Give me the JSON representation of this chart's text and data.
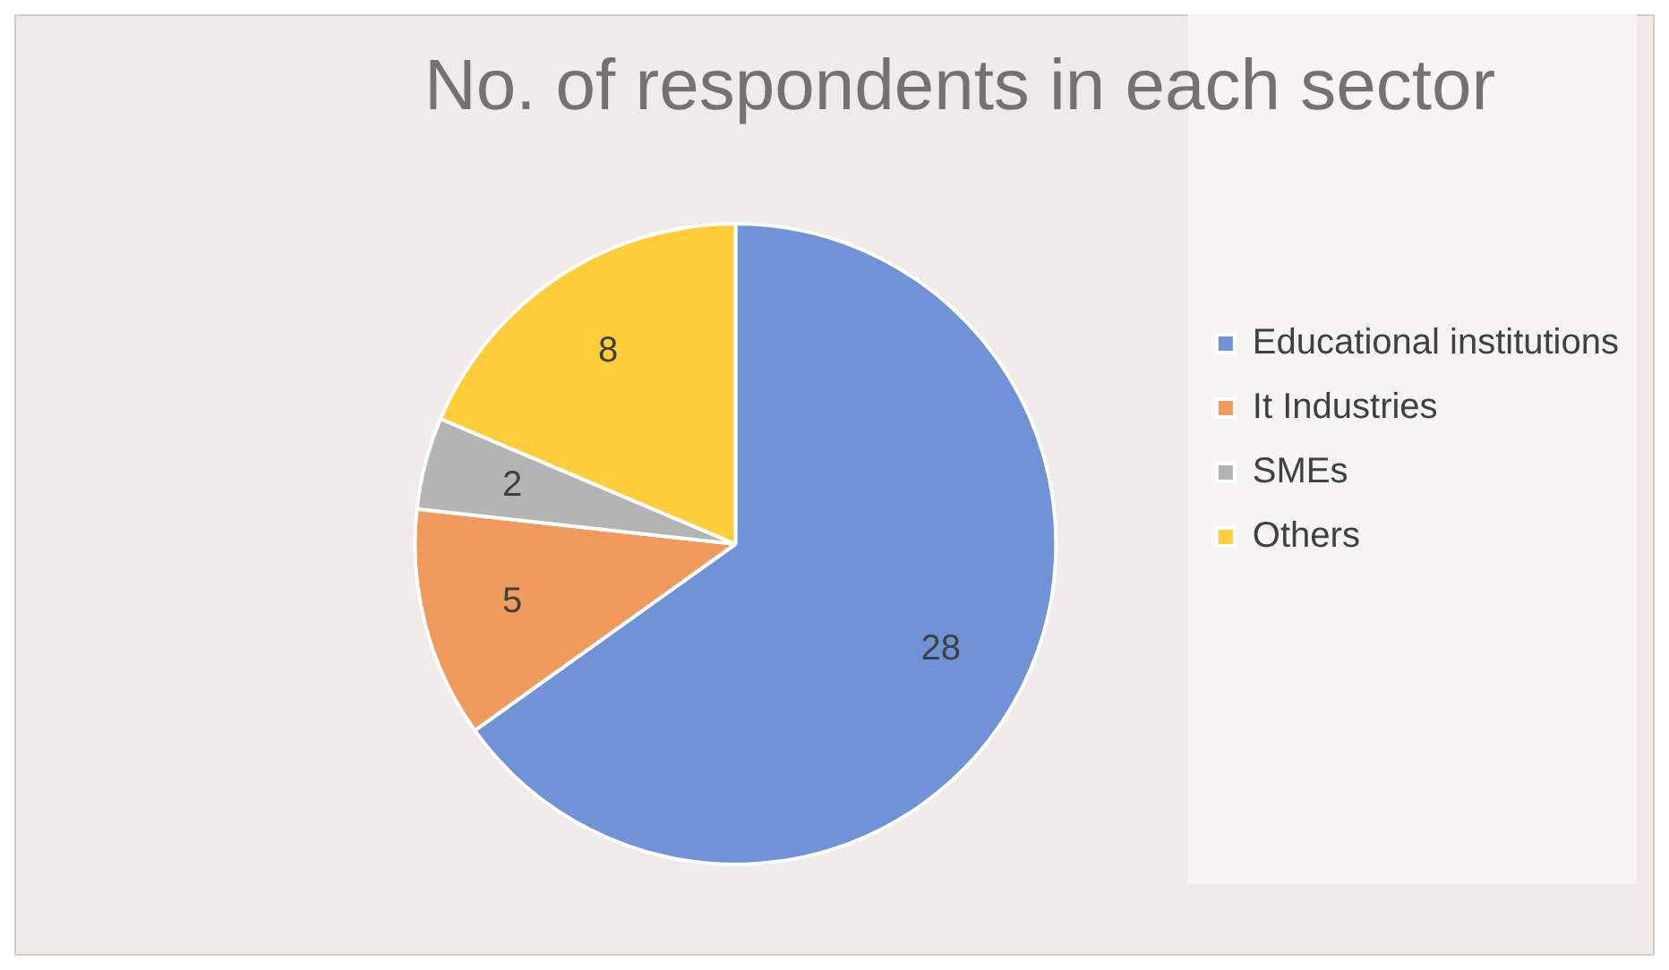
{
  "chart_data": {
    "type": "pie",
    "title": "No. of respondents in each sector",
    "categories": [
      "Educational institutions",
      "It Industries",
      "SMEs",
      "Others"
    ],
    "values": [
      28,
      5,
      2,
      8
    ],
    "colors": [
      "#6f93d6",
      "#f09a5e",
      "#b4b4b4",
      "#ffcc3a"
    ],
    "data_labels": true,
    "legend": "right"
  }
}
